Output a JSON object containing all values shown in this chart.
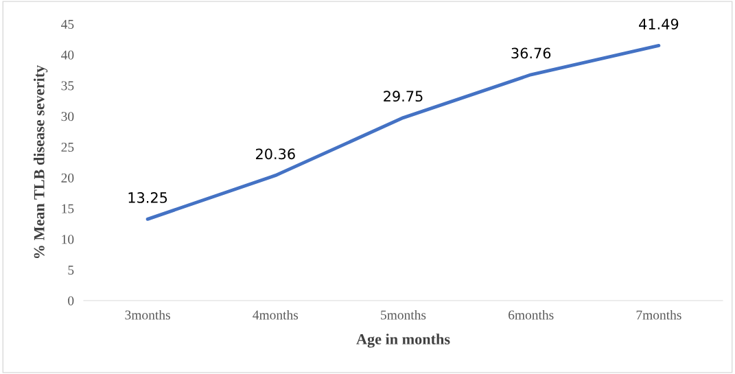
{
  "chart_data": {
    "type": "line",
    "xlabel": "Age in months",
    "ylabel": "% Mean TLB disease severity",
    "categories": [
      "3months",
      "4months",
      "5months",
      "6months",
      "7months"
    ],
    "series": [
      {
        "color": "#4472c4",
        "values": [
          13.25,
          20.36,
          29.75,
          36.76,
          41.49
        ]
      }
    ],
    "ylim": [
      0,
      45
    ],
    "yticks": [
      0,
      5,
      10,
      15,
      20,
      25,
      30,
      35,
      40,
      45
    ],
    "marker": "none",
    "line_style": "solid",
    "data_labels": true
  }
}
